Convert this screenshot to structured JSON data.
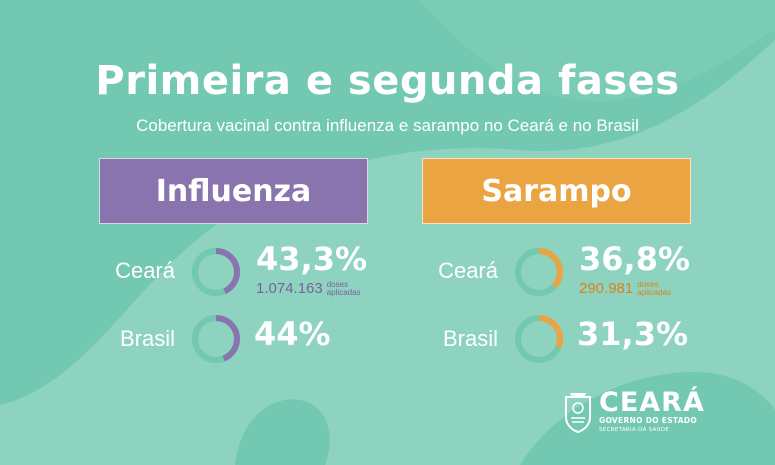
{
  "title": "Primeira e segunda fases",
  "subtitle": "Cobertura vacinal contra influenza e sarampo no Ceará e no Brasil",
  "colors": {
    "influenza": "#8a74ad",
    "sarampo": "#eaa442",
    "background": "#8dd3bf"
  },
  "influenza": {
    "label": "Influenza",
    "ceara": {
      "location": "Ceará",
      "percent_text": "43,3%",
      "coverage": 43.3,
      "doses_value": "1.074.163",
      "doses_label_1": "doses",
      "doses_label_2": "aplicadas"
    },
    "brasil": {
      "location": "Brasil",
      "percent_text": "44%",
      "coverage": 44
    }
  },
  "sarampo": {
    "label": "Sarampo",
    "ceara": {
      "location": "Ceará",
      "percent_text": "36,8%",
      "coverage": 36.8,
      "doses_value": "290.981",
      "doses_label_1": "doses",
      "doses_label_2": "aplicadas"
    },
    "brasil": {
      "location": "Brasil",
      "percent_text": "31,3%",
      "coverage": 31.3
    }
  },
  "logo": {
    "name": "CEARÁ",
    "line1": "GOVERNO DO ESTADO",
    "line2": "SECRETARIA DA SAÚDE",
    "icon": "state-coat-of-arms-icon"
  }
}
